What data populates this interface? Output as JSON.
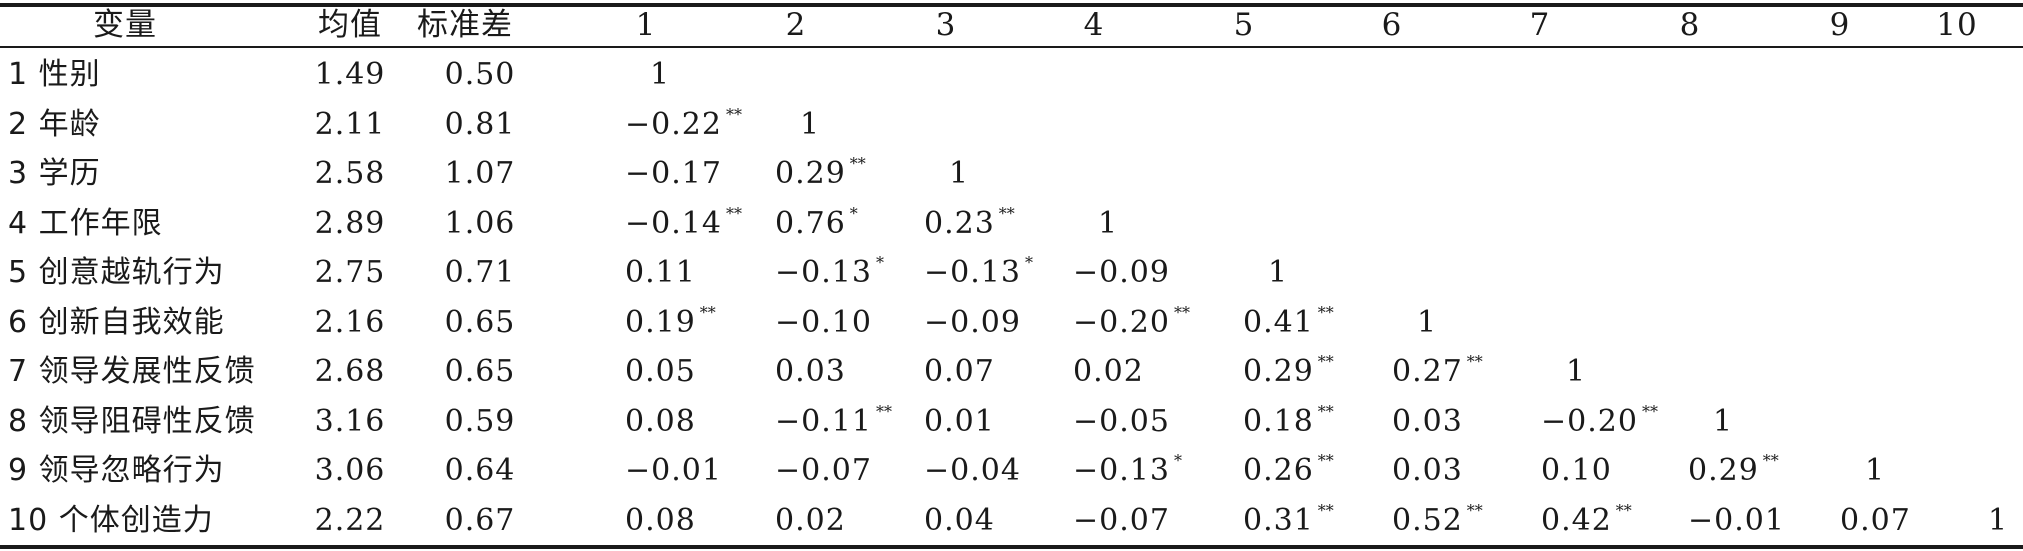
{
  "table": {
    "headers": [
      "变量",
      "均值",
      "标准差",
      "1",
      "2",
      "3",
      "4",
      "5",
      "6",
      "7",
      "8",
      "9",
      "10"
    ],
    "rows": [
      {
        "label": "1 性别",
        "mean": "1.49",
        "sd": "0.50",
        "r": [
          {
            "v": "1",
            "s": ""
          }
        ]
      },
      {
        "label": "2 年龄",
        "mean": "2.11",
        "sd": "0.81",
        "r": [
          {
            "v": "−0.22",
            "s": "**"
          },
          {
            "v": "1",
            "s": ""
          }
        ]
      },
      {
        "label": "3 学历",
        "mean": "2.58",
        "sd": "1.07",
        "r": [
          {
            "v": "−0.17",
            "s": ""
          },
          {
            "v": "0.29",
            "s": "**"
          },
          {
            "v": "1",
            "s": ""
          }
        ]
      },
      {
        "label": "4 工作年限",
        "mean": "2.89",
        "sd": "1.06",
        "r": [
          {
            "v": "−0.14",
            "s": "**"
          },
          {
            "v": "0.76",
            "s": "*"
          },
          {
            "v": "0.23",
            "s": "**"
          },
          {
            "v": "1",
            "s": ""
          }
        ]
      },
      {
        "label": "5 创意越轨行为",
        "mean": "2.75",
        "sd": "0.71",
        "r": [
          {
            "v": "0.11",
            "s": ""
          },
          {
            "v": "−0.13",
            "s": "*"
          },
          {
            "v": "−0.13",
            "s": "*"
          },
          {
            "v": "−0.09",
            "s": ""
          },
          {
            "v": "1",
            "s": ""
          }
        ]
      },
      {
        "label": "6 创新自我效能",
        "mean": "2.16",
        "sd": "0.65",
        "r": [
          {
            "v": "0.19",
            "s": "**"
          },
          {
            "v": "−0.10",
            "s": ""
          },
          {
            "v": "−0.09",
            "s": ""
          },
          {
            "v": "−0.20",
            "s": "**"
          },
          {
            "v": "0.41",
            "s": "**"
          },
          {
            "v": "1",
            "s": ""
          }
        ]
      },
      {
        "label": "7 领导发展性反馈",
        "mean": "2.68",
        "sd": "0.65",
        "r": [
          {
            "v": "0.05",
            "s": ""
          },
          {
            "v": "0.03",
            "s": ""
          },
          {
            "v": "0.07",
            "s": ""
          },
          {
            "v": "0.02",
            "s": ""
          },
          {
            "v": "0.29",
            "s": "**"
          },
          {
            "v": "0.27",
            "s": "**"
          },
          {
            "v": "1",
            "s": ""
          }
        ]
      },
      {
        "label": "8 领导阻碍性反馈",
        "mean": "3.16",
        "sd": "0.59",
        "r": [
          {
            "v": "0.08",
            "s": ""
          },
          {
            "v": "−0.11",
            "s": "**"
          },
          {
            "v": "0.01",
            "s": ""
          },
          {
            "v": "−0.05",
            "s": ""
          },
          {
            "v": "0.18",
            "s": "**"
          },
          {
            "v": "0.03",
            "s": ""
          },
          {
            "v": "−0.20",
            "s": "**"
          },
          {
            "v": "1",
            "s": ""
          }
        ]
      },
      {
        "label": "9 领导忽略行为",
        "mean": "3.06",
        "sd": "0.64",
        "r": [
          {
            "v": "−0.01",
            "s": ""
          },
          {
            "v": "−0.07",
            "s": ""
          },
          {
            "v": "−0.04",
            "s": ""
          },
          {
            "v": "−0.13",
            "s": "*"
          },
          {
            "v": "0.26",
            "s": "**"
          },
          {
            "v": "0.03",
            "s": ""
          },
          {
            "v": "0.10",
            "s": ""
          },
          {
            "v": "0.29",
            "s": "**"
          },
          {
            "v": "1",
            "s": ""
          }
        ]
      },
      {
        "label": "10 个体创造力",
        "mean": "2.22",
        "sd": "0.67",
        "r": [
          {
            "v": "0.08",
            "s": ""
          },
          {
            "v": "0.02",
            "s": ""
          },
          {
            "v": "0.04",
            "s": ""
          },
          {
            "v": "−0.07",
            "s": ""
          },
          {
            "v": "0.31",
            "s": "**"
          },
          {
            "v": "0.52",
            "s": "**"
          },
          {
            "v": "0.42",
            "s": "**"
          },
          {
            "v": "−0.01",
            "s": ""
          },
          {
            "v": "0.07",
            "s": ""
          },
          {
            "v": "1",
            "s": ""
          }
        ]
      }
    ]
  }
}
